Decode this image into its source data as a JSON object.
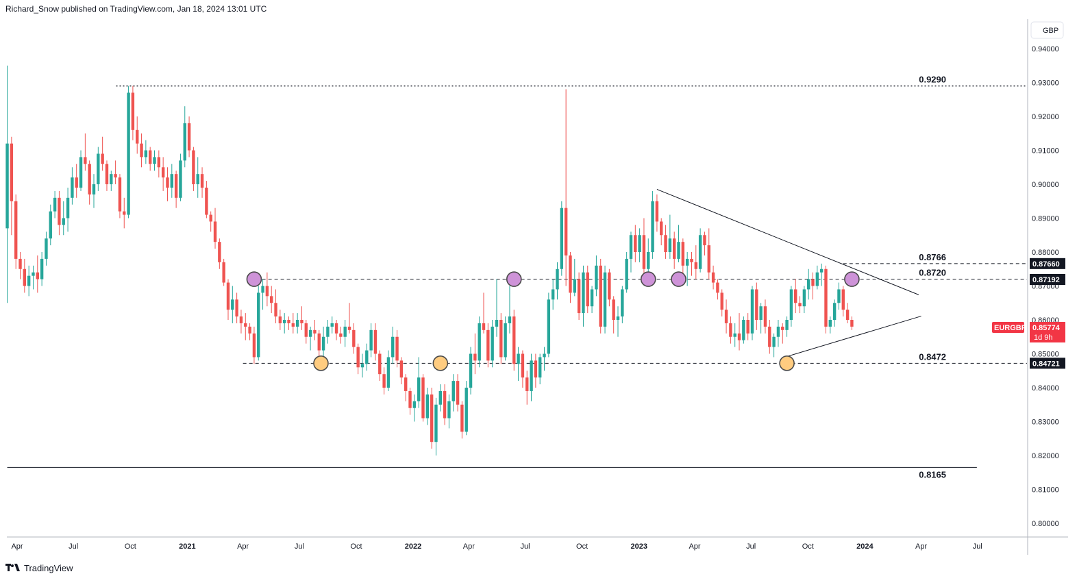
{
  "header": {
    "publisher_line": "Richard_Snow published on TradingView.com, Jan 18, 2024 13:01 UTC"
  },
  "footer": {
    "brand": "TradingView",
    "logo_icon": "tradingview-logo-icon"
  },
  "colors": {
    "up": "#26a69a",
    "down": "#ef5350",
    "marker_purple": "#ce93d8",
    "marker_yellow": "#ffcc80",
    "tag_dark": "#131722",
    "tag_symbol": "#f23645"
  },
  "chart_data": {
    "type": "candlestick",
    "symbol": "EURGBP",
    "currency_label": "GBP",
    "countdown": "1d 9h",
    "last_price": "0.85774",
    "ylim": [
      0.795,
      0.9448
    ],
    "y_ticks": [
      "0.94000",
      "0.93000",
      "0.92000",
      "0.91000",
      "0.90000",
      "0.89000",
      "0.88000",
      "0.87000",
      "0.86000",
      "0.85000",
      "0.84000",
      "0.83000",
      "0.82000",
      "0.81000",
      "0.80000"
    ],
    "x_ticks": [
      {
        "label": "Apr",
        "date": "2020-04-01"
      },
      {
        "label": "Jul",
        "date": "2020-07-01"
      },
      {
        "label": "Oct",
        "date": "2020-10-01"
      },
      {
        "label": "2021",
        "date": "2021-01-01"
      },
      {
        "label": "Apr",
        "date": "2021-04-01"
      },
      {
        "label": "Jul",
        "date": "2021-07-01"
      },
      {
        "label": "Oct",
        "date": "2021-10-01"
      },
      {
        "label": "2022",
        "date": "2022-01-01"
      },
      {
        "label": "Apr",
        "date": "2022-04-01"
      },
      {
        "label": "Jul",
        "date": "2022-07-01"
      },
      {
        "label": "Oct",
        "date": "2022-10-01"
      },
      {
        "label": "2023",
        "date": "2023-01-01"
      },
      {
        "label": "Apr",
        "date": "2023-04-01"
      },
      {
        "label": "Jul",
        "date": "2023-07-01"
      },
      {
        "label": "Oct",
        "date": "2023-10-01"
      },
      {
        "label": "2024",
        "date": "2024-01-01"
      },
      {
        "label": "Apr",
        "date": "2024-04-01"
      },
      {
        "label": "Jul",
        "date": "2024-07-01"
      }
    ],
    "price_tags": [
      {
        "text": "0.87660",
        "value": 0.8766
      },
      {
        "text": "0.87192",
        "value": 0.87192
      },
      {
        "text": "0.84721",
        "value": 0.84721
      }
    ],
    "levels": [
      {
        "label": "0.9290",
        "value": 0.929,
        "style": "dotted",
        "from": "2020-09-08",
        "to": "2024-09-30"
      },
      {
        "label": "0.8766",
        "value": 0.8766,
        "style": "dashed",
        "from": "2023-11-27",
        "to": "2024-09-30"
      },
      {
        "label": "0.8720",
        "value": 0.872,
        "style": "dashed",
        "from": "2021-04-12",
        "to": "2024-09-30"
      },
      {
        "label": "0.8472",
        "value": 0.8472,
        "style": "dashed",
        "from": "2021-04-01",
        "to": "2024-09-30"
      },
      {
        "label": "0.8165",
        "value": 0.8165,
        "style": "solid",
        "from": "2020-03-16",
        "to": "2024-06-30"
      }
    ],
    "trendlines": [
      {
        "from": {
          "date": "2023-01-30",
          "value": 0.8985
        },
        "to": {
          "date": "2024-03-28",
          "value": 0.8674
        }
      },
      {
        "from": {
          "date": "2023-08-28",
          "value": 0.8492
        },
        "to": {
          "date": "2024-04-01",
          "value": 0.8611
        }
      }
    ],
    "markers": [
      {
        "date": "2021-04-19",
        "value": 0.872,
        "color": "purple"
      },
      {
        "date": "2021-08-05",
        "value": 0.8472,
        "color": "yellow"
      },
      {
        "date": "2022-02-14",
        "value": 0.8472,
        "color": "yellow"
      },
      {
        "date": "2022-06-13",
        "value": 0.872,
        "color": "purple"
      },
      {
        "date": "2023-01-16",
        "value": 0.872,
        "color": "purple"
      },
      {
        "date": "2023-03-06",
        "value": 0.872,
        "color": "purple"
      },
      {
        "date": "2023-08-28",
        "value": 0.8472,
        "color": "yellow"
      },
      {
        "date": "2023-12-11",
        "value": 0.872,
        "color": "purple"
      }
    ],
    "candles_weekly_start": "2020-03-16",
    "candles_ohlc": [
      [
        0.887,
        0.935,
        0.865,
        0.912
      ],
      [
        0.912,
        0.914,
        0.885,
        0.895
      ],
      [
        0.895,
        0.897,
        0.875,
        0.878
      ],
      [
        0.878,
        0.88,
        0.872,
        0.875
      ],
      [
        0.875,
        0.878,
        0.868,
        0.87
      ],
      [
        0.87,
        0.876,
        0.867,
        0.873
      ],
      [
        0.873,
        0.876,
        0.869,
        0.874
      ],
      [
        0.874,
        0.879,
        0.868,
        0.872
      ],
      [
        0.872,
        0.88,
        0.87,
        0.878
      ],
      [
        0.878,
        0.886,
        0.876,
        0.884
      ],
      [
        0.884,
        0.894,
        0.882,
        0.892
      ],
      [
        0.892,
        0.898,
        0.89,
        0.896
      ],
      [
        0.896,
        0.898,
        0.885,
        0.888
      ],
      [
        0.888,
        0.895,
        0.885,
        0.89
      ],
      [
        0.89,
        0.899,
        0.886,
        0.896
      ],
      [
        0.896,
        0.905,
        0.894,
        0.902
      ],
      [
        0.902,
        0.906,
        0.896,
        0.899
      ],
      [
        0.899,
        0.91,
        0.898,
        0.908
      ],
      [
        0.908,
        0.915,
        0.904,
        0.906
      ],
      [
        0.906,
        0.907,
        0.894,
        0.897
      ],
      [
        0.897,
        0.903,
        0.893,
        0.9
      ],
      [
        0.9,
        0.911,
        0.898,
        0.909
      ],
      [
        0.909,
        0.914,
        0.904,
        0.906
      ],
      [
        0.906,
        0.907,
        0.898,
        0.9
      ],
      [
        0.9,
        0.904,
        0.898,
        0.903
      ],
      [
        0.903,
        0.907,
        0.9,
        0.902
      ],
      [
        0.902,
        0.903,
        0.89,
        0.892
      ],
      [
        0.892,
        0.896,
        0.887,
        0.891
      ],
      [
        0.891,
        0.929,
        0.89,
        0.927
      ],
      [
        0.927,
        0.929,
        0.913,
        0.916
      ],
      [
        0.916,
        0.92,
        0.909,
        0.912
      ],
      [
        0.912,
        0.915,
        0.905,
        0.908
      ],
      [
        0.908,
        0.913,
        0.906,
        0.91
      ],
      [
        0.91,
        0.911,
        0.904,
        0.906
      ],
      [
        0.906,
        0.91,
        0.904,
        0.908
      ],
      [
        0.908,
        0.91,
        0.902,
        0.905
      ],
      [
        0.905,
        0.908,
        0.898,
        0.902
      ],
      [
        0.902,
        0.905,
        0.895,
        0.899
      ],
      [
        0.899,
        0.906,
        0.896,
        0.903
      ],
      [
        0.903,
        0.904,
        0.893,
        0.896
      ],
      [
        0.896,
        0.909,
        0.895,
        0.907
      ],
      [
        0.907,
        0.923,
        0.905,
        0.918
      ],
      [
        0.918,
        0.92,
        0.908,
        0.91
      ],
      [
        0.91,
        0.911,
        0.898,
        0.9
      ],
      [
        0.9,
        0.908,
        0.896,
        0.903
      ],
      [
        0.903,
        0.905,
        0.896,
        0.899
      ],
      [
        0.899,
        0.901,
        0.89,
        0.891
      ],
      [
        0.891,
        0.892,
        0.886,
        0.889
      ],
      [
        0.889,
        0.893,
        0.881,
        0.883
      ],
      [
        0.883,
        0.884,
        0.875,
        0.877
      ],
      [
        0.877,
        0.878,
        0.87,
        0.871
      ],
      [
        0.871,
        0.872,
        0.86,
        0.863
      ],
      [
        0.863,
        0.87,
        0.859,
        0.866
      ],
      [
        0.866,
        0.868,
        0.859,
        0.861
      ],
      [
        0.861,
        0.863,
        0.856,
        0.859
      ],
      [
        0.859,
        0.862,
        0.854,
        0.858
      ],
      [
        0.858,
        0.859,
        0.854,
        0.856
      ],
      [
        0.856,
        0.858,
        0.847,
        0.849
      ],
      [
        0.849,
        0.87,
        0.848,
        0.868
      ],
      [
        0.868,
        0.872,
        0.863,
        0.87
      ],
      [
        0.87,
        0.874,
        0.864,
        0.867
      ],
      [
        0.867,
        0.87,
        0.862,
        0.865
      ],
      [
        0.865,
        0.869,
        0.859,
        0.861
      ],
      [
        0.861,
        0.863,
        0.857,
        0.859
      ],
      [
        0.859,
        0.862,
        0.856,
        0.86
      ],
      [
        0.86,
        0.861,
        0.857,
        0.859
      ],
      [
        0.859,
        0.862,
        0.856,
        0.858
      ],
      [
        0.858,
        0.862,
        0.856,
        0.86
      ],
      [
        0.86,
        0.864,
        0.857,
        0.859
      ],
      [
        0.859,
        0.86,
        0.853,
        0.855
      ],
      [
        0.855,
        0.858,
        0.851,
        0.857
      ],
      [
        0.857,
        0.86,
        0.854,
        0.856
      ],
      [
        0.856,
        0.857,
        0.849,
        0.851
      ],
      [
        0.851,
        0.858,
        0.847,
        0.855
      ],
      [
        0.855,
        0.86,
        0.853,
        0.858
      ],
      [
        0.858,
        0.861,
        0.856,
        0.859
      ],
      [
        0.859,
        0.86,
        0.854,
        0.856
      ],
      [
        0.856,
        0.858,
        0.853,
        0.855
      ],
      [
        0.855,
        0.86,
        0.852,
        0.858
      ],
      [
        0.858,
        0.865,
        0.856,
        0.857
      ],
      [
        0.857,
        0.859,
        0.85,
        0.852
      ],
      [
        0.852,
        0.853,
        0.844,
        0.846
      ],
      [
        0.846,
        0.85,
        0.843,
        0.847
      ],
      [
        0.847,
        0.853,
        0.845,
        0.851
      ],
      [
        0.851,
        0.859,
        0.849,
        0.857
      ],
      [
        0.857,
        0.859,
        0.848,
        0.85
      ],
      [
        0.85,
        0.851,
        0.842,
        0.844
      ],
      [
        0.844,
        0.846,
        0.838,
        0.84
      ],
      [
        0.84,
        0.851,
        0.839,
        0.849
      ],
      [
        0.849,
        0.858,
        0.847,
        0.855
      ],
      [
        0.855,
        0.857,
        0.846,
        0.848
      ],
      [
        0.848,
        0.849,
        0.841,
        0.843
      ],
      [
        0.843,
        0.844,
        0.836,
        0.839
      ],
      [
        0.839,
        0.84,
        0.832,
        0.834
      ],
      [
        0.834,
        0.838,
        0.83,
        0.836
      ],
      [
        0.836,
        0.849,
        0.834,
        0.843
      ],
      [
        0.843,
        0.844,
        0.83,
        0.831
      ],
      [
        0.831,
        0.84,
        0.829,
        0.838
      ],
      [
        0.838,
        0.84,
        0.822,
        0.824
      ],
      [
        0.824,
        0.837,
        0.82,
        0.835
      ],
      [
        0.835,
        0.841,
        0.833,
        0.839
      ],
      [
        0.839,
        0.841,
        0.829,
        0.831
      ],
      [
        0.831,
        0.838,
        0.828,
        0.836
      ],
      [
        0.836,
        0.844,
        0.833,
        0.842
      ],
      [
        0.842,
        0.844,
        0.833,
        0.835
      ],
      [
        0.835,
        0.836,
        0.825,
        0.827
      ],
      [
        0.827,
        0.842,
        0.826,
        0.84
      ],
      [
        0.84,
        0.852,
        0.838,
        0.85
      ],
      [
        0.85,
        0.856,
        0.844,
        0.848
      ],
      [
        0.848,
        0.861,
        0.846,
        0.859
      ],
      [
        0.859,
        0.868,
        0.856,
        0.857
      ],
      [
        0.857,
        0.859,
        0.846,
        0.848
      ],
      [
        0.848,
        0.86,
        0.846,
        0.858
      ],
      [
        0.858,
        0.872,
        0.855,
        0.86
      ],
      [
        0.86,
        0.862,
        0.847,
        0.849
      ],
      [
        0.849,
        0.861,
        0.848,
        0.859
      ],
      [
        0.859,
        0.87,
        0.856,
        0.861
      ],
      [
        0.861,
        0.863,
        0.845,
        0.847
      ],
      [
        0.847,
        0.852,
        0.842,
        0.85
      ],
      [
        0.85,
        0.851,
        0.84,
        0.843
      ],
      [
        0.843,
        0.845,
        0.835,
        0.839
      ],
      [
        0.839,
        0.85,
        0.836,
        0.848
      ],
      [
        0.848,
        0.85,
        0.84,
        0.843
      ],
      [
        0.843,
        0.85,
        0.841,
        0.849
      ],
      [
        0.849,
        0.852,
        0.845,
        0.85
      ],
      [
        0.85,
        0.868,
        0.849,
        0.866
      ],
      [
        0.866,
        0.872,
        0.863,
        0.869
      ],
      [
        0.869,
        0.877,
        0.866,
        0.875
      ],
      [
        0.875,
        0.895,
        0.873,
        0.893
      ],
      [
        0.893,
        0.928,
        0.87,
        0.879
      ],
      [
        0.879,
        0.88,
        0.865,
        0.868
      ],
      [
        0.868,
        0.878,
        0.867,
        0.872
      ],
      [
        0.872,
        0.874,
        0.86,
        0.862
      ],
      [
        0.862,
        0.876,
        0.858,
        0.874
      ],
      [
        0.874,
        0.876,
        0.862,
        0.864
      ],
      [
        0.864,
        0.87,
        0.862,
        0.869
      ],
      [
        0.869,
        0.879,
        0.867,
        0.876
      ],
      [
        0.876,
        0.878,
        0.856,
        0.858
      ],
      [
        0.858,
        0.876,
        0.856,
        0.874
      ],
      [
        0.874,
        0.875,
        0.864,
        0.866
      ],
      [
        0.866,
        0.867,
        0.856,
        0.86
      ],
      [
        0.86,
        0.864,
        0.855,
        0.861
      ],
      [
        0.861,
        0.87,
        0.859,
        0.869
      ],
      [
        0.869,
        0.88,
        0.868,
        0.878
      ],
      [
        0.878,
        0.886,
        0.874,
        0.885
      ],
      [
        0.885,
        0.888,
        0.877,
        0.88
      ],
      [
        0.88,
        0.887,
        0.877,
        0.885
      ],
      [
        0.885,
        0.89,
        0.871,
        0.875
      ],
      [
        0.875,
        0.884,
        0.872,
        0.88
      ],
      [
        0.88,
        0.898,
        0.878,
        0.895
      ],
      [
        0.895,
        0.897,
        0.886,
        0.889
      ],
      [
        0.889,
        0.89,
        0.882,
        0.885
      ],
      [
        0.885,
        0.888,
        0.878,
        0.88
      ],
      [
        0.88,
        0.891,
        0.878,
        0.884
      ],
      [
        0.884,
        0.886,
        0.875,
        0.878
      ],
      [
        0.878,
        0.888,
        0.877,
        0.883
      ],
      [
        0.883,
        0.884,
        0.873,
        0.876
      ],
      [
        0.876,
        0.88,
        0.87,
        0.878
      ],
      [
        0.878,
        0.88,
        0.873,
        0.877
      ],
      [
        0.877,
        0.882,
        0.872,
        0.875
      ],
      [
        0.875,
        0.887,
        0.874,
        0.885
      ],
      [
        0.885,
        0.886,
        0.879,
        0.882
      ],
      [
        0.882,
        0.887,
        0.872,
        0.874
      ],
      [
        0.874,
        0.876,
        0.869,
        0.871
      ],
      [
        0.871,
        0.872,
        0.866,
        0.868
      ],
      [
        0.868,
        0.869,
        0.861,
        0.863
      ],
      [
        0.863,
        0.866,
        0.856,
        0.859
      ],
      [
        0.859,
        0.861,
        0.853,
        0.855
      ],
      [
        0.855,
        0.859,
        0.852,
        0.856
      ],
      [
        0.856,
        0.862,
        0.851,
        0.854
      ],
      [
        0.854,
        0.861,
        0.853,
        0.86
      ],
      [
        0.86,
        0.862,
        0.854,
        0.856
      ],
      [
        0.856,
        0.87,
        0.854,
        0.869
      ],
      [
        0.869,
        0.871,
        0.857,
        0.86
      ],
      [
        0.86,
        0.865,
        0.856,
        0.864
      ],
      [
        0.864,
        0.866,
        0.856,
        0.858
      ],
      [
        0.858,
        0.86,
        0.85,
        0.852
      ],
      [
        0.852,
        0.856,
        0.849,
        0.855
      ],
      [
        0.855,
        0.86,
        0.852,
        0.858
      ],
      [
        0.858,
        0.859,
        0.853,
        0.857
      ],
      [
        0.857,
        0.861,
        0.855,
        0.86
      ],
      [
        0.86,
        0.87,
        0.858,
        0.869
      ],
      [
        0.869,
        0.872,
        0.862,
        0.865
      ],
      [
        0.865,
        0.867,
        0.862,
        0.864
      ],
      [
        0.864,
        0.87,
        0.862,
        0.869
      ],
      [
        0.869,
        0.875,
        0.866,
        0.872
      ],
      [
        0.872,
        0.874,
        0.866,
        0.87
      ],
      [
        0.87,
        0.876,
        0.869,
        0.874
      ],
      [
        0.874,
        0.8766,
        0.87,
        0.875
      ],
      [
        0.875,
        0.876,
        0.856,
        0.858
      ],
      [
        0.858,
        0.861,
        0.856,
        0.86
      ],
      [
        0.86,
        0.866,
        0.858,
        0.865
      ],
      [
        0.865,
        0.871,
        0.863,
        0.869
      ],
      [
        0.869,
        0.87,
        0.861,
        0.863
      ],
      [
        0.863,
        0.865,
        0.859,
        0.86
      ],
      [
        0.86,
        0.861,
        0.857,
        0.858
      ]
    ]
  }
}
